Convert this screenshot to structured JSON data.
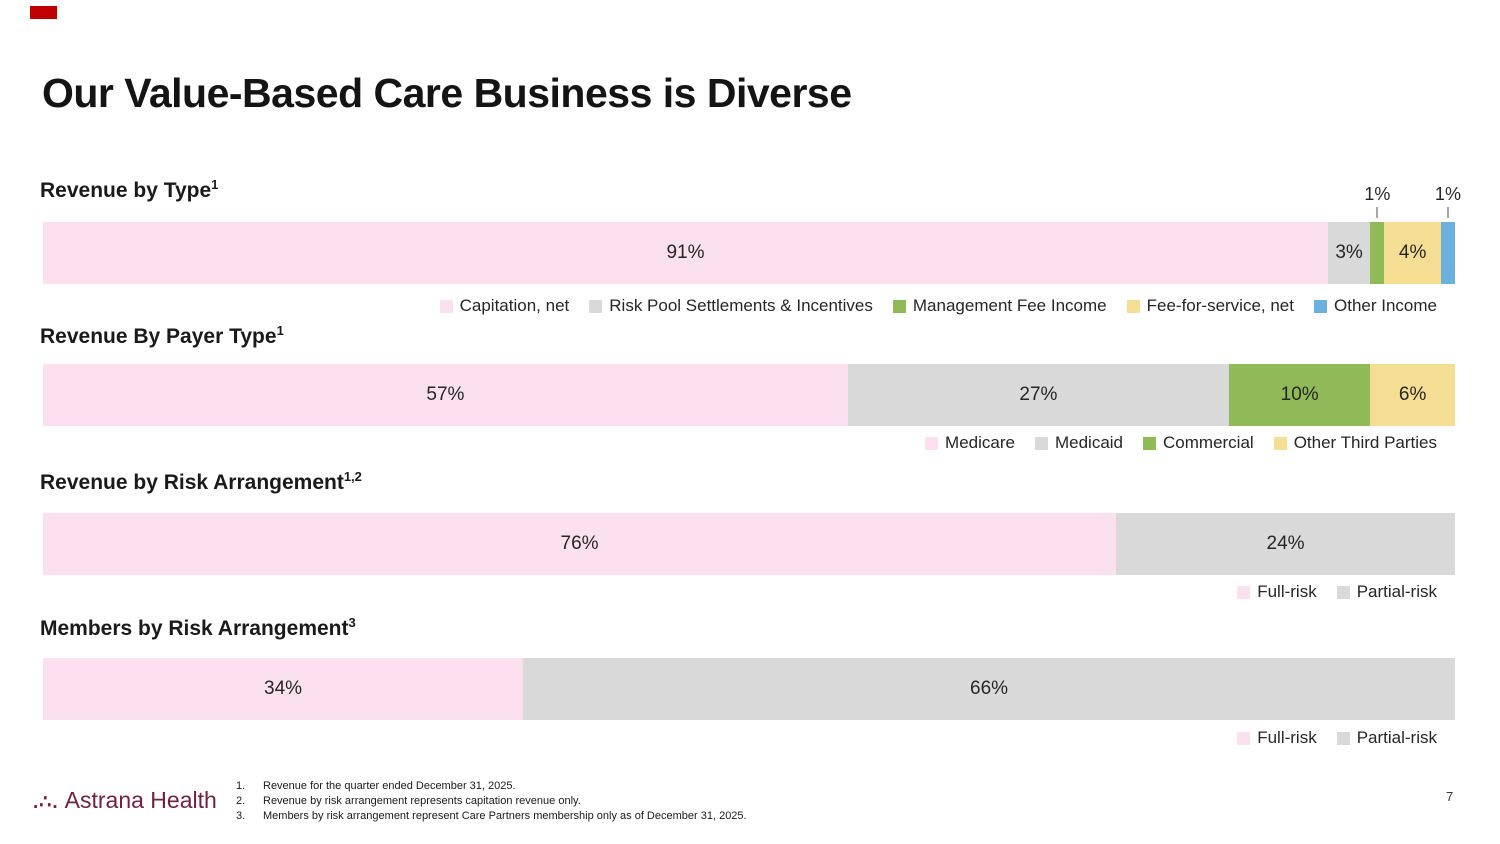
{
  "slide": {
    "title": "Our Value-Based Care Business is Diverse",
    "page_number": "7"
  },
  "logo": {
    "mark": ".∴.",
    "name": "Astrana Health"
  },
  "footnotes": [
    {
      "num": "1.",
      "text": "Revenue for the quarter ended December 31, 2025."
    },
    {
      "num": "2.",
      "text": "Revenue by risk arrangement represents capitation revenue only."
    },
    {
      "num": "3.",
      "text": "Members by risk arrangement represent Care Partners membership only as of December 31, 2025."
    }
  ],
  "colors": {
    "pink": "#fbe0ef",
    "gray": "#d9d9d9",
    "green": "#90ba58",
    "yellow": "#f6dd94",
    "blue": "#6cb1dd",
    "logo_maroon": "#6f2244",
    "marker_red": "#c00000",
    "leader_gray": "#a6a6a6"
  },
  "chart_data": [
    {
      "type": "bar",
      "stacked": true,
      "orientation": "horizontal",
      "title": "Revenue by Type",
      "title_sup": "1",
      "unit": "%",
      "xlim": [
        0,
        100
      ],
      "legend_position": "bottom-right",
      "segments": [
        {
          "label": "Capitation, net",
          "value": 91,
          "display": "91%",
          "color": "#fbe0ef",
          "label_pos": "inside"
        },
        {
          "label": "Risk Pool Settlements & Incentives",
          "value": 3,
          "display": "3%",
          "color": "#d9d9d9",
          "label_pos": "inside"
        },
        {
          "label": "Management Fee Income",
          "value": 1,
          "display": "1%",
          "color": "#90ba58",
          "label_pos": "above"
        },
        {
          "label": "Fee-for-service, net",
          "value": 4,
          "display": "4%",
          "color": "#f6dd94",
          "label_pos": "inside"
        },
        {
          "label": "Other Income",
          "value": 1,
          "display": "1%",
          "color": "#6cb1dd",
          "label_pos": "above"
        }
      ]
    },
    {
      "type": "bar",
      "stacked": true,
      "orientation": "horizontal",
      "title": "Revenue By Payer Type",
      "title_sup": "1",
      "unit": "%",
      "xlim": [
        0,
        100
      ],
      "legend_position": "bottom-right",
      "segments": [
        {
          "label": "Medicare",
          "value": 57,
          "display": "57%",
          "color": "#fbe0ef",
          "label_pos": "inside"
        },
        {
          "label": "Medicaid",
          "value": 27,
          "display": "27%",
          "color": "#d9d9d9",
          "label_pos": "inside"
        },
        {
          "label": "Commercial",
          "value": 10,
          "display": "10%",
          "color": "#90ba58",
          "label_pos": "inside"
        },
        {
          "label": "Other Third Parties",
          "value": 6,
          "display": "6%",
          "color": "#f6dd94",
          "label_pos": "inside"
        }
      ]
    },
    {
      "type": "bar",
      "stacked": true,
      "orientation": "horizontal",
      "title": "Revenue by Risk Arrangement",
      "title_sup": "1,2",
      "unit": "%",
      "xlim": [
        0,
        100
      ],
      "legend_position": "bottom-right",
      "segments": [
        {
          "label": "Full-risk",
          "value": 76,
          "display": "76%",
          "color": "#fbe0ef",
          "label_pos": "inside"
        },
        {
          "label": "Partial-risk",
          "value": 24,
          "display": "24%",
          "color": "#d9d9d9",
          "label_pos": "inside"
        }
      ]
    },
    {
      "type": "bar",
      "stacked": true,
      "orientation": "horizontal",
      "title": "Members by Risk Arrangement",
      "title_sup": "3",
      "unit": "%",
      "xlim": [
        0,
        100
      ],
      "legend_position": "bottom-right",
      "segments": [
        {
          "label": "Full-risk",
          "value": 34,
          "display": "34%",
          "color": "#fbe0ef",
          "label_pos": "inside"
        },
        {
          "label": "Partial-risk",
          "value": 66,
          "display": "66%",
          "color": "#d9d9d9",
          "label_pos": "inside"
        }
      ]
    }
  ]
}
